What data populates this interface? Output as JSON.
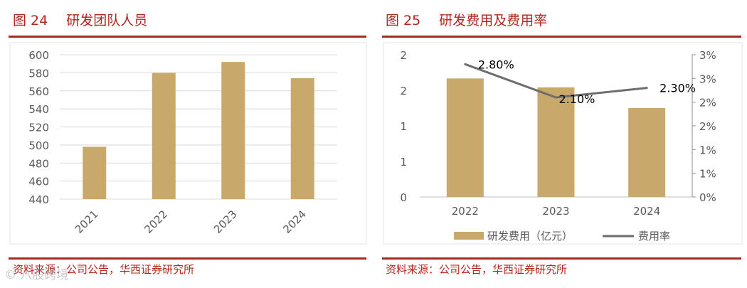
{
  "left": {
    "figure_number": "图 24",
    "figure_title": "研发团队人员",
    "source": "资料来源：公司公告，华西证券研究所",
    "watermark": "© 八股跨境"
  },
  "right": {
    "figure_number": "图 25",
    "figure_title": "研发费用及费用率",
    "source": "资料来源：公司公告，华西证券研究所"
  },
  "colors": {
    "bar": "#c8a96b",
    "line": "#6d6d6d",
    "accent": "#b3261e",
    "grid": "#d9d9d9",
    "axis_text": "#595959"
  },
  "chart_data": [
    {
      "type": "bar",
      "categories": [
        "2021",
        "2022",
        "2023",
        "2024"
      ],
      "values": [
        498,
        580,
        592,
        574
      ],
      "ylim": [
        440,
        600
      ],
      "yticks": [
        "440",
        "460",
        "480",
        "500",
        "520",
        "540",
        "560",
        "580",
        "600"
      ],
      "grid": true,
      "xlabel_rotation": "-45deg"
    },
    {
      "type": "bar+line",
      "categories": [
        "2022",
        "2023",
        "2024"
      ],
      "series": [
        {
          "name": "研发费用（亿元）",
          "type": "bar",
          "axis": "left",
          "values": [
            2.0,
            1.85,
            1.5
          ]
        },
        {
          "name": "费用率",
          "type": "line",
          "axis": "right",
          "values": [
            2.8,
            2.1,
            2.3
          ],
          "data_labels": [
            "2.80%",
            "2.10%",
            "2.30%"
          ]
        }
      ],
      "ylim_left": [
        0,
        2.4
      ],
      "yticks_left": [
        "0",
        "1",
        "1",
        "2",
        "2"
      ],
      "ylim_right": [
        0,
        3.0
      ],
      "yticks_right": [
        "0%",
        "1%",
        "1%",
        "2%",
        "2%",
        "3%",
        "3%"
      ],
      "legend": "bottom",
      "grid": false
    }
  ]
}
